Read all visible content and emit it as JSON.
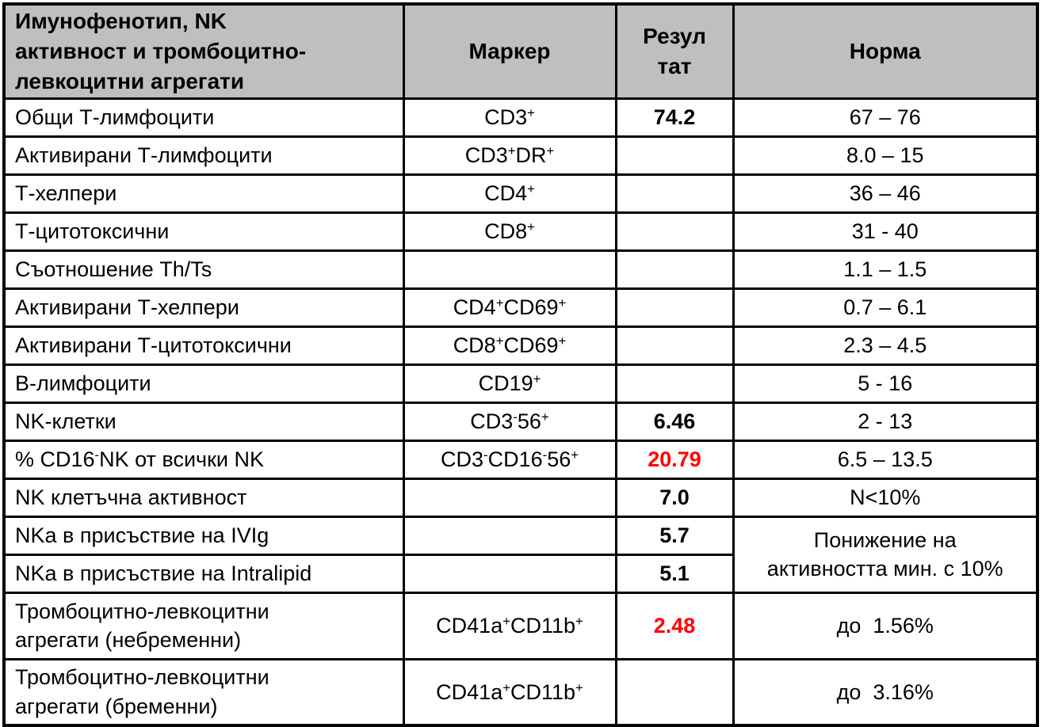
{
  "colors": {
    "header_bg": "#BFBFBF",
    "border": "#000000",
    "text": "#000000",
    "abnormal_result": "#FF0000"
  },
  "table": {
    "columns": [
      {
        "key": "name",
        "label": "Имунофенотип, NK\nактивност и тромбоцитно-\nлевкоцитни агрегати"
      },
      {
        "key": "marker",
        "label": "Маркер"
      },
      {
        "key": "result",
        "label": "Резул\nтат"
      },
      {
        "key": "norm",
        "label": "Норма"
      }
    ],
    "rows": [
      {
        "name": "Общи Т-лимфоцити",
        "marker": "CD3⁺",
        "result": "74.2",
        "norm": "67 – 76"
      },
      {
        "name": "Активирани Т-лимфоцити",
        "marker": "CD3⁺DR⁺",
        "result": "",
        "norm": "8.0 – 15"
      },
      {
        "name": "Т-хелпери",
        "marker": "CD4⁺",
        "result": "",
        "norm": "36 – 46"
      },
      {
        "name": "Т-цитотоксични",
        "marker": "CD8⁺",
        "result": "",
        "norm": "31 - 40"
      },
      {
        "name": "Съотношение Th/Ts",
        "marker": "",
        "result": "",
        "norm": "1.1 – 1.5"
      },
      {
        "name": "Активирани Т-хелпери",
        "marker": "CD4⁺CD69⁺",
        "result": "",
        "norm": "0.7 – 6.1"
      },
      {
        "name": "Активирани Т-цитотоксични",
        "marker": "CD8⁺CD69⁺",
        "result": "",
        "norm": "2.3 – 4.5"
      },
      {
        "name": "В-лимфоцити",
        "marker": "CD19⁺",
        "result": "",
        "norm": "5 - 16"
      },
      {
        "name": "NK-клетки",
        "marker": "CD3⁻56⁺",
        "result": "6.46",
        "norm": "2 - 13"
      },
      {
        "name": "% CD16⁻NK от всички NK",
        "marker": "CD3⁻CD16⁻56⁺",
        "result": "20.79",
        "result_color": "#FF0000",
        "norm": "6.5 – 13.5"
      },
      {
        "name": "NK клетъчна активност",
        "marker": "",
        "result": "7.0",
        "norm": "N<10%"
      },
      {
        "name": "NKa в присъствие на IVIg",
        "marker": "",
        "result": "5.7",
        "norm": "Понижение на\nактивността мин. с 10%",
        "norm_rowspan": 2
      },
      {
        "name": "NKa в присъствие на Intralipid",
        "marker": "",
        "result": "5.1"
      },
      {
        "name": "Тромбоцитно-левкоцитни\nагрегати (небременни)",
        "marker": "CD41a⁺CD11b⁺",
        "result": "2.48",
        "result_color": "#FF0000",
        "norm": "до  1.56%"
      },
      {
        "name": "Тромбоцитно-левкоцитни\nагрегати (бременни)",
        "marker": "CD41a⁺CD11b⁺",
        "result": "",
        "norm": "до  3.16%"
      }
    ]
  }
}
